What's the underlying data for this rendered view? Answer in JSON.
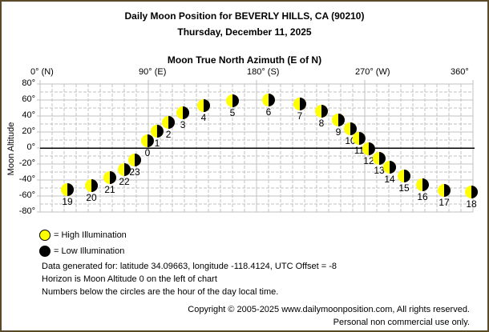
{
  "header": {
    "title": "Daily Moon Position for BEVERLY HILLS, CA (90210)",
    "date": "Thursday, December 11, 2025"
  },
  "colors": {
    "frame_border": "#5a4a2a",
    "high_illumination": "#ffff00",
    "low_illumination": "#000000",
    "grid": "#c0c0c0",
    "horizon": "#000000"
  },
  "legend": {
    "high": "= High Illumination",
    "low": "= Low Illumination"
  },
  "info": {
    "line1": "Data generated for: latitude 34.09663, longitude -118.4124, UTC Offset = -8",
    "line2": "Horizon is Moon Altitude 0 on the left of chart",
    "line3": "Numbers below the circles are the hour of the day local time."
  },
  "footer": {
    "copyright": "Copyright © 2005-2025 www.dailymoonposition.com, All rights reserved.",
    "usage": "Personal non commercial use only."
  },
  "chart_data": {
    "type": "scatter",
    "title": "Daily Moon Position for BEVERLY HILLS, CA (90210)",
    "subtitle": "Thursday, December 11, 2025",
    "xlabel": "Moon True North Azimuth (E of N)",
    "ylabel": "Moon Altitude",
    "xlim": [
      0,
      360
    ],
    "ylim": [
      -80,
      80
    ],
    "x_ticks": [
      {
        "value": 0,
        "label": "0° (N)"
      },
      {
        "value": 90,
        "label": "90° (E)"
      },
      {
        "value": 180,
        "label": "180° (S)"
      },
      {
        "value": 270,
        "label": "270° (W)"
      },
      {
        "value": 360,
        "label": "360°"
      }
    ],
    "y_ticks": [
      {
        "value": 80,
        "label": "80°"
      },
      {
        "value": 60,
        "label": "60°"
      },
      {
        "value": 40,
        "label": "40°"
      },
      {
        "value": 20,
        "label": "20°"
      },
      {
        "value": 0,
        "label": "0°"
      },
      {
        "value": -20,
        "label": "-20°"
      },
      {
        "value": -40,
        "label": "-40°"
      },
      {
        "value": -60,
        "label": "-60°"
      },
      {
        "value": -80,
        "label": "-80°"
      }
    ],
    "grid": true,
    "horizon_line": 0,
    "legend": [
      "High Illumination",
      "Low Illumination"
    ],
    "legend_position": "bottom-left",
    "point_style": "half-illuminated moon (left yellow, right black)",
    "points": [
      {
        "hour": 19,
        "azimuth": 22.7,
        "altitude": -52
      },
      {
        "hour": 20,
        "azimuth": 42.7,
        "altitude": -47
      },
      {
        "hour": 21,
        "azimuth": 58.0,
        "altitude": -37
      },
      {
        "hour": 22,
        "azimuth": 70.0,
        "altitude": -27
      },
      {
        "hour": 23,
        "azimuth": 78.7,
        "altitude": -15
      },
      {
        "hour": 0,
        "azimuth": 89.3,
        "altitude": 9
      },
      {
        "hour": 1,
        "azimuth": 97.3,
        "altitude": 21
      },
      {
        "hour": 2,
        "azimuth": 106.7,
        "altitude": 32
      },
      {
        "hour": 3,
        "azimuth": 118.7,
        "altitude": 44
      },
      {
        "hour": 4,
        "azimuth": 136.0,
        "altitude": 53
      },
      {
        "hour": 5,
        "azimuth": 160.0,
        "altitude": 59
      },
      {
        "hour": 6,
        "azimuth": 190.0,
        "altitude": 60
      },
      {
        "hour": 7,
        "azimuth": 216.0,
        "altitude": 55
      },
      {
        "hour": 8,
        "azimuth": 234.0,
        "altitude": 46
      },
      {
        "hour": 9,
        "azimuth": 248.0,
        "altitude": 35
      },
      {
        "hour": 10,
        "azimuth": 258.0,
        "altitude": 24
      },
      {
        "hour": 11,
        "azimuth": 265.3,
        "altitude": 12
      },
      {
        "hour": 12,
        "azimuth": 273.3,
        "altitude": -1
      },
      {
        "hour": 13,
        "azimuth": 282.0,
        "altitude": -13
      },
      {
        "hour": 14,
        "azimuth": 290.7,
        "altitude": -24
      },
      {
        "hour": 15,
        "azimuth": 302.7,
        "altitude": -35
      },
      {
        "hour": 16,
        "azimuth": 318.0,
        "altitude": -46
      },
      {
        "hour": 17,
        "azimuth": 336.0,
        "altitude": -53
      },
      {
        "hour": 18,
        "azimuth": 358.7,
        "altitude": -55
      }
    ]
  }
}
